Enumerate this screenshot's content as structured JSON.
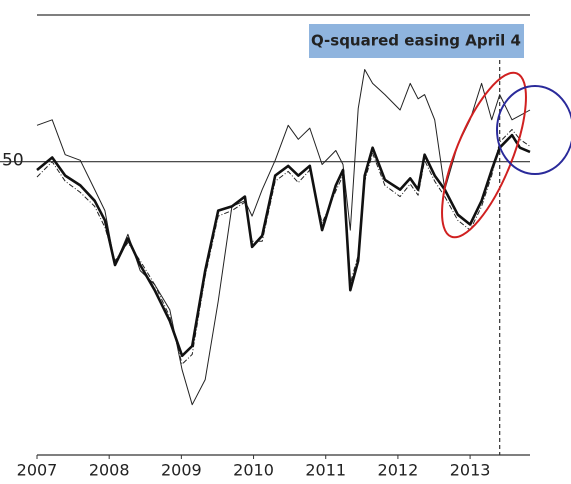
{
  "chart_data": {
    "type": "line",
    "x": [
      2007.0,
      2007.21,
      2007.39,
      2007.6,
      2007.8,
      2007.94,
      2008.08,
      2008.26,
      2008.43,
      2008.63,
      2008.84,
      2009.01,
      2009.15,
      2009.33,
      2009.51,
      2009.7,
      2009.88,
      2009.98,
      2010.12,
      2010.3,
      2010.48,
      2010.62,
      2010.78,
      2010.95,
      2011.14,
      2011.24,
      2011.34,
      2011.45,
      2011.54,
      2011.65,
      2011.82,
      2012.03,
      2012.17,
      2012.28,
      2012.37,
      2012.51,
      2012.65,
      2012.83,
      2013.0,
      2013.16,
      2013.3,
      2013.41,
      2013.58,
      2013.69,
      2013.83
    ],
    "series": [
      {
        "color": "#222222",
        "width": 1,
        "dash": false,
        "values": [
          52.6,
          53.0,
          50.5,
          50.1,
          48.0,
          46.5,
          42.6,
          44.8,
          42.2,
          41.2,
          39.4,
          35.1,
          32.6,
          34.4,
          40.0,
          46.8,
          47.2,
          46.1,
          48.0,
          50.1,
          52.6,
          51.6,
          52.4,
          49.8,
          50.8,
          49.8,
          45.1,
          53.8,
          56.6,
          55.6,
          54.8,
          53.7,
          55.6,
          54.5,
          54.8,
          53.0,
          48.0,
          51.2,
          53.0,
          55.6,
          53.0,
          54.8,
          53.0,
          53.3,
          53.7
        ]
      },
      {
        "color": "#222222",
        "width": 1,
        "dash": true,
        "values": [
          48.9,
          50.0,
          48.6,
          47.8,
          46.8,
          45.3,
          42.9,
          44.2,
          42.9,
          41.2,
          38.9,
          35.5,
          36.2,
          41.8,
          46.1,
          46.5,
          47.1,
          44.3,
          44.3,
          48.6,
          49.3,
          48.5,
          49.4,
          45.6,
          47.9,
          49.0,
          41.3,
          43.3,
          48.6,
          50.6,
          48.3,
          47.5,
          48.4,
          47.6,
          50.1,
          48.6,
          47.5,
          45.8,
          45.1,
          46.8,
          49.0,
          51.4,
          52.3,
          51.6,
          51.1
        ]
      },
      {
        "color": "#111111",
        "width": 2.6,
        "dash": false,
        "values": [
          49.4,
          50.3,
          49.0,
          48.3,
          47.2,
          45.8,
          42.6,
          44.5,
          42.6,
          40.8,
          38.6,
          36.1,
          36.8,
          42.2,
          46.5,
          46.8,
          47.5,
          43.9,
          44.7,
          49.0,
          49.7,
          49.0,
          49.7,
          45.1,
          48.3,
          49.4,
          40.8,
          42.9,
          49.0,
          51.0,
          48.7,
          48.0,
          48.8,
          48.0,
          50.5,
          49.0,
          48.0,
          46.2,
          45.5,
          47.2,
          49.4,
          51.0,
          51.9,
          51.0,
          50.7
        ]
      }
    ],
    "xlim": [
      2007,
      2013.83
    ],
    "xticks": [
      2007,
      2008,
      2009,
      2010,
      2011,
      2012,
      2013
    ],
    "ylim": [
      29,
      60.5
    ],
    "yticks": [
      50
    ],
    "grid": true,
    "annotation": {
      "text": "Q-squared easing April 4",
      "x": 2013.41
    }
  }
}
